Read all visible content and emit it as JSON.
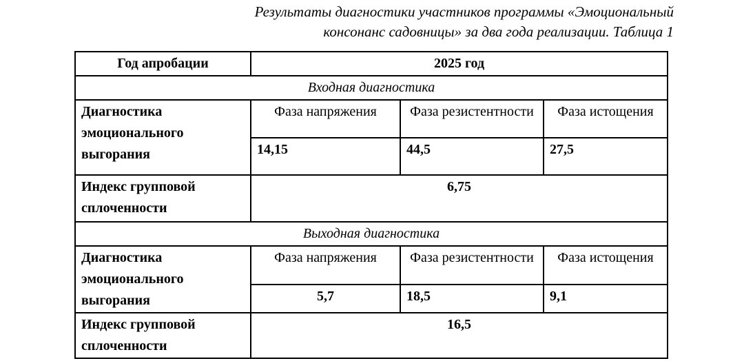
{
  "caption": {
    "line1": "Результаты диагностики участников программы «Эмоциональный",
    "line2": "консонанс садовницы» за два года реализации. Таблица 1"
  },
  "table": {
    "year_row": {
      "label": "Год апробации",
      "value": "2025 год"
    },
    "burnout_label": "Диагностика эмоционального выгорания",
    "cohesion_label": "Индекс групповой сплоченности",
    "phase_headers": [
      "Фаза напряжения",
      "Фаза резистентности",
      "Фаза истощения"
    ],
    "sections": [
      {
        "title": "Входная диагностика",
        "burnout_values": [
          "14,15",
          "44,5",
          "27,5"
        ],
        "cohesion_value": "6,75"
      },
      {
        "title": "Выходная диагностика",
        "burnout_values": [
          "5,7",
          "18,5",
          "9,1"
        ],
        "cohesion_value": "16,5"
      }
    ]
  },
  "colors": {
    "text": "#000000",
    "border": "#000000",
    "background": "#ffffff"
  }
}
